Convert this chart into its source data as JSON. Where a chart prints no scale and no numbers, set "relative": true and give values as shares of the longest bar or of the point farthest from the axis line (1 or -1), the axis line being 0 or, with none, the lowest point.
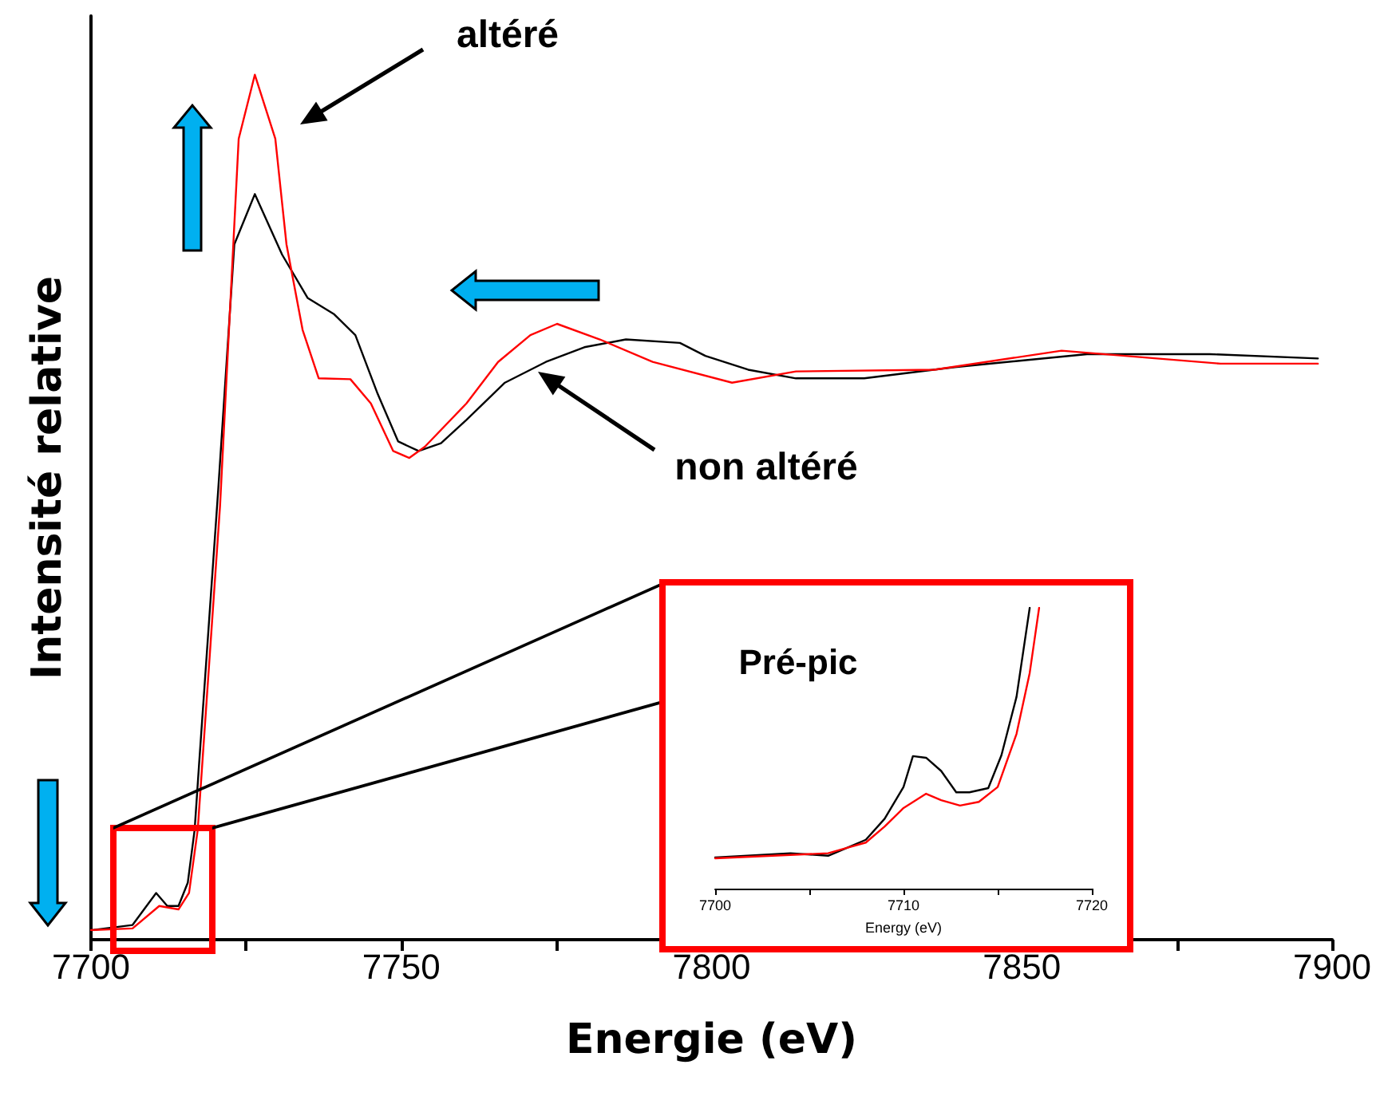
{
  "chart_data": [
    {
      "type": "line",
      "relative": true,
      "xlabel": "Energie (eV)",
      "ylabel": "Intensité relative",
      "xlim": [
        7700,
        7900
      ],
      "xticks": [
        7700,
        {
          "value": 7725,
          "label": null
        },
        7750,
        {
          "value": 7775,
          "label": null
        },
        7800,
        {
          "value": 7825,
          "label": null
        },
        7850,
        {
          "value": 7875,
          "label": null
        },
        7900
      ],
      "tick_labels": "x",
      "marker": "none",
      "annotations": [
        "altéré",
        "non altéré"
      ],
      "series": [
        {
          "color": "#000000",
          "x": [
            7700,
            7706.7,
            7710.5,
            7712.3,
            7714.1,
            7715.6,
            7716.7,
            7717.4,
            7720.5,
            7723.1,
            7726.4,
            7730.8,
            7734.9,
            7739.2,
            7742.6,
            7746.2,
            7749.5,
            7752.8,
            7756.4,
            7760.5,
            7766.7,
            7773.3,
            7779.5,
            7786.2,
            7794.9,
            7799,
            7805.9,
            7813.6,
            7824.6,
            7839.2,
            7860.5,
            7880.3,
            7897.7
          ],
          "values": [
            0.011,
            0.017,
            0.054,
            0.039,
            0.039,
            0.066,
            0.127,
            0.201,
            0.52,
            0.804,
            0.862,
            0.792,
            0.742,
            0.723,
            0.699,
            0.631,
            0.576,
            0.565,
            0.574,
            0.601,
            0.644,
            0.668,
            0.685,
            0.694,
            0.69,
            0.675,
            0.659,
            0.649,
            0.649,
            0.662,
            0.677,
            0.677,
            0.672
          ]
        },
        {
          "color": "#ff0000",
          "x": [
            7700,
            7706.7,
            7711,
            7714.1,
            7715.8,
            7717.2,
            7720.8,
            7723.8,
            7726.4,
            7729.7,
            7731.5,
            7734.1,
            7736.7,
            7741.8,
            7745.1,
            7748.7,
            7751.3,
            7753.8,
            7760.5,
            7765.6,
            7770.8,
            7775.1,
            7782,
            7790.5,
            7803.3,
            7813.6,
            7835.9,
            7856.4,
            7882,
            7897.7
          ],
          "values": [
            0.011,
            0.013,
            0.039,
            0.035,
            0.054,
            0.127,
            0.502,
            0.926,
            1,
            0.926,
            0.804,
            0.705,
            0.649,
            0.648,
            0.62,
            0.565,
            0.557,
            0.57,
            0.62,
            0.668,
            0.699,
            0.712,
            0.694,
            0.668,
            0.644,
            0.657,
            0.659,
            0.681,
            0.666,
            0.666
          ]
        }
      ]
    },
    {
      "type": "line",
      "relative": true,
      "xlabel": "Energy (eV)",
      "xlim": [
        7700,
        7720
      ],
      "xticks": [
        7700,
        {
          "value": 7705,
          "label": null
        },
        7710,
        {
          "value": 7715,
          "label": null
        },
        7720
      ],
      "tick_labels": "x",
      "marker": "none",
      "annotations": [
        "Pré-pic"
      ],
      "series": [
        {
          "color": "#000000",
          "x": [
            7700,
            7704,
            7706,
            7707,
            7708,
            7709,
            7710,
            7710.5,
            7711.2,
            7712,
            7712.8,
            7713.5,
            7714.5,
            7715.2,
            7716,
            7716.7
          ],
          "values": [
            0.111,
            0.126,
            0.117,
            0.145,
            0.174,
            0.249,
            0.362,
            0.472,
            0.466,
            0.419,
            0.343,
            0.343,
            0.358,
            0.475,
            0.683,
            1
          ]
        },
        {
          "color": "#ff0000",
          "x": [
            7700,
            7706,
            7707,
            7708,
            7709,
            7710,
            7711.2,
            7712,
            7713,
            7714,
            7715,
            7716,
            7716.7,
            7717.2
          ],
          "values": [
            0.108,
            0.126,
            0.145,
            0.164,
            0.221,
            0.287,
            0.338,
            0.315,
            0.296,
            0.309,
            0.362,
            0.551,
            0.768,
            1
          ]
        }
      ]
    }
  ]
}
